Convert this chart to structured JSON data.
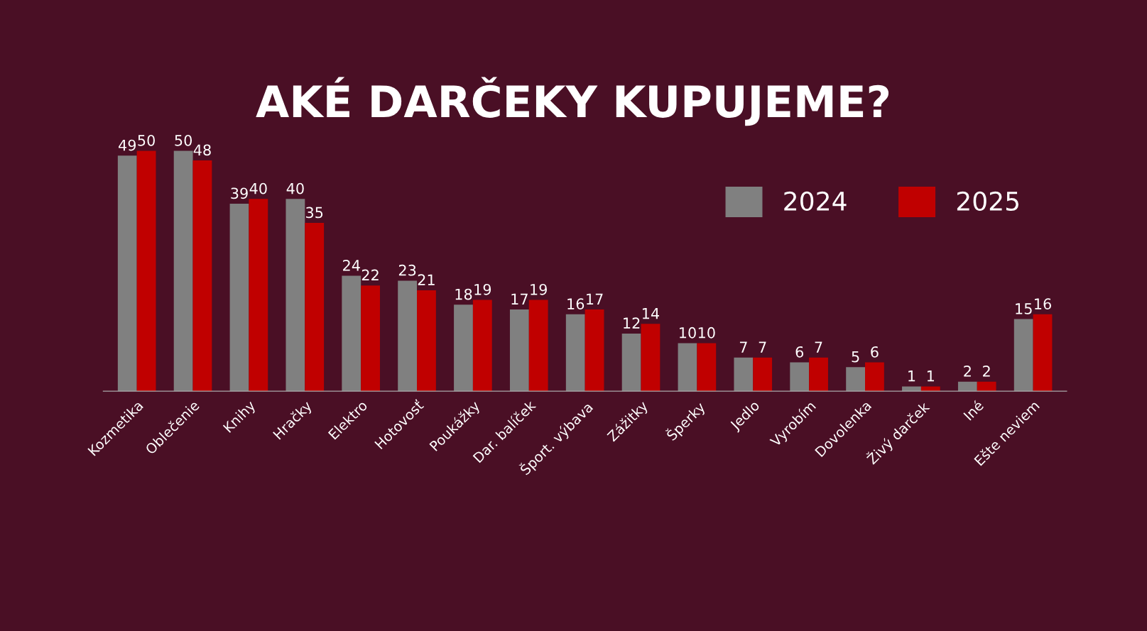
{
  "chart_data": {
    "type": "bar",
    "title": "AKÉ DARČEKY KUPUJEME?",
    "categories": [
      "Kozmetika",
      "Oblečenie",
      "Knihy",
      "Hračky",
      "Elektro",
      "Hotovosť",
      "Poukážky",
      "Dar. balíček",
      "Šport. výbava",
      "Zážitky",
      "Šperky",
      "Jedlo",
      "Vyrobím",
      "Dovolenka",
      "Živý darček",
      "Iné",
      "Ešte neviem"
    ],
    "series": [
      {
        "name": "2024",
        "color": "#808080",
        "values": [
          49,
          50,
          39,
          40,
          24,
          23,
          18,
          17,
          16,
          12,
          10,
          7,
          6,
          5,
          1,
          2,
          15
        ]
      },
      {
        "name": "2025",
        "color": "#c00000",
        "values": [
          50,
          48,
          40,
          35,
          22,
          21,
          19,
          19,
          17,
          14,
          10,
          7,
          7,
          6,
          1,
          2,
          16
        ]
      }
    ],
    "data_labels": true,
    "legend": "top right",
    "grid": false
  }
}
